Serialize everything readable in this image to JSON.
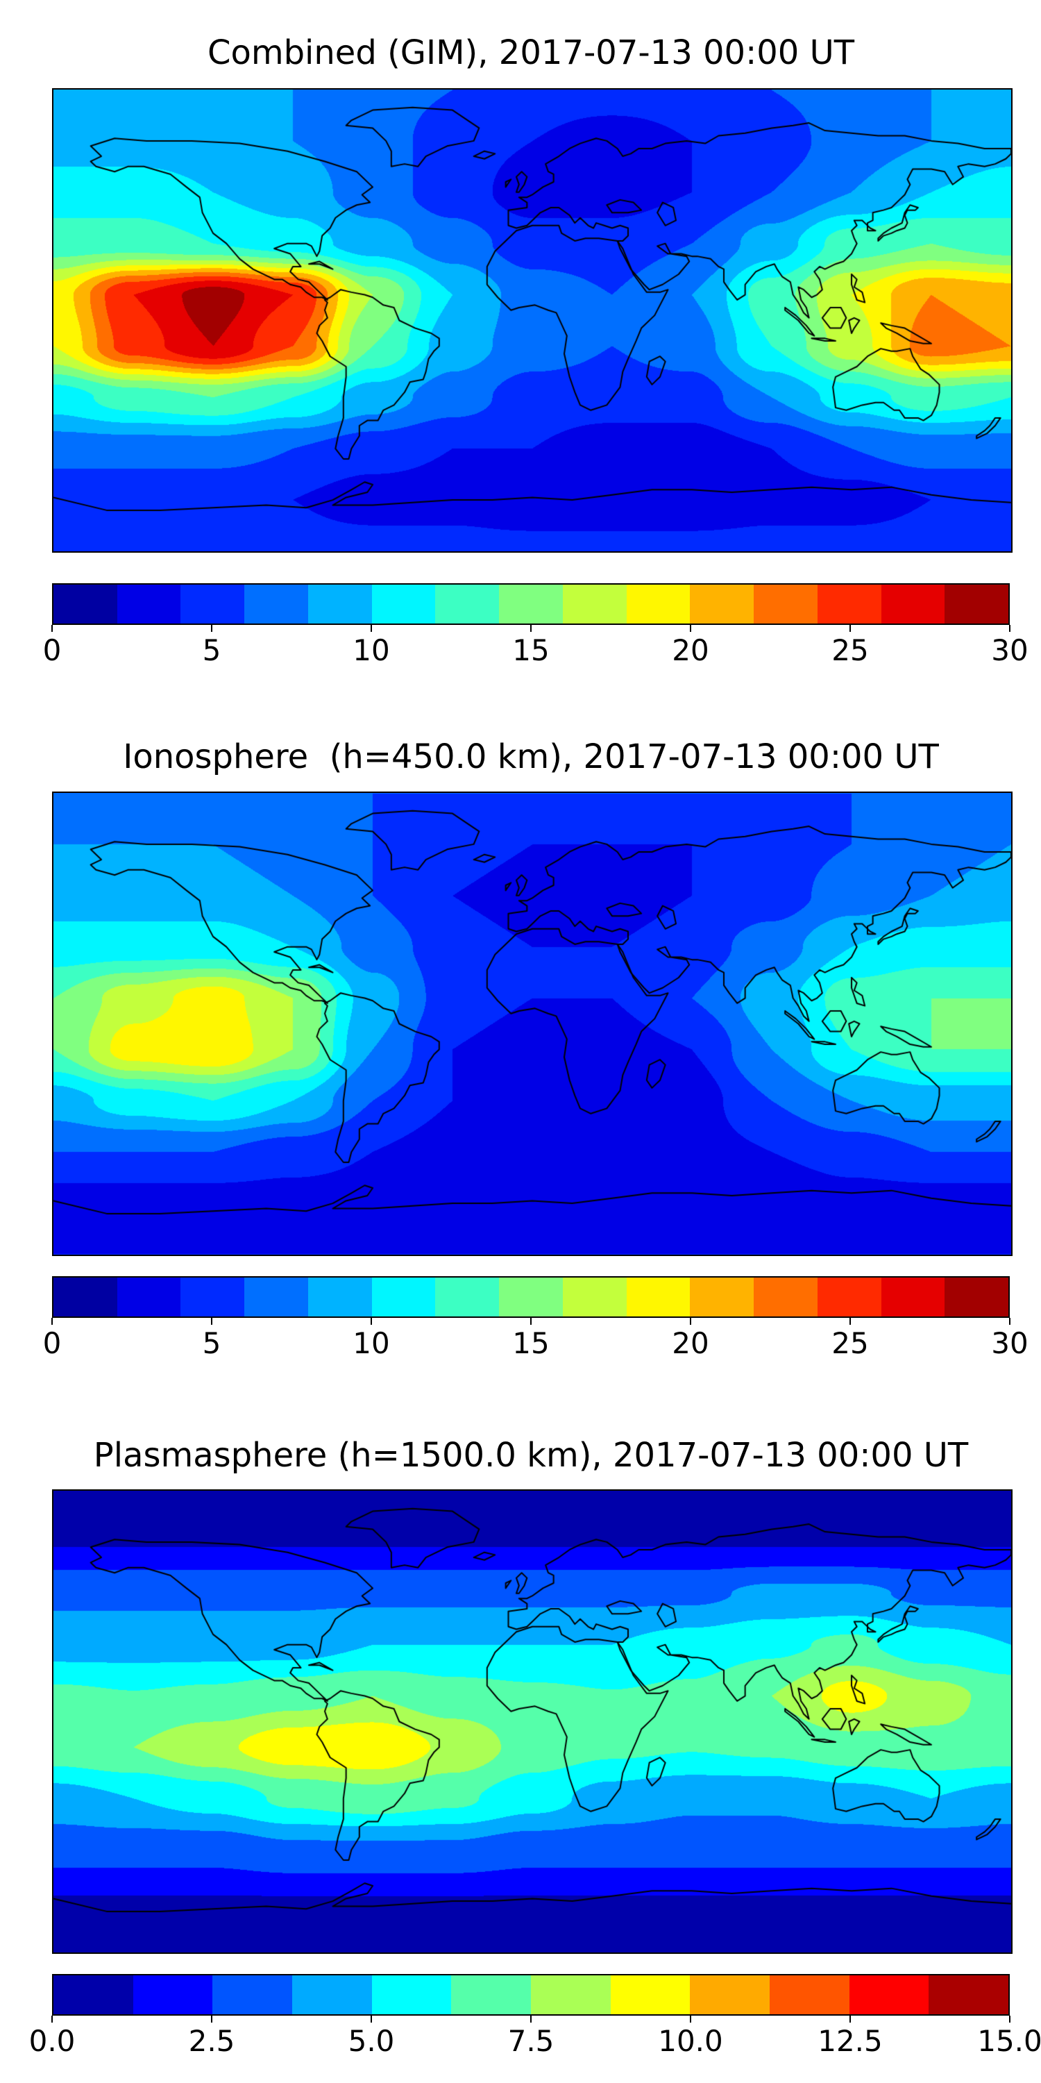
{
  "figure": {
    "background": "#ffffff"
  },
  "panels": [
    {
      "title": "Combined (GIM), 2017-07-13 00:00 UT",
      "colorbar": {
        "vmin": 0,
        "vmax": 30,
        "bands": 15,
        "tick_labels": [
          "0",
          "5",
          "10",
          "15",
          "20",
          "25",
          "30"
        ]
      }
    },
    {
      "title": "Ionosphere  (h=450.0 km), 2017-07-13 00:00 UT",
      "colorbar": {
        "vmin": 0,
        "vmax": 30,
        "bands": 15,
        "tick_labels": [
          "0",
          "5",
          "10",
          "15",
          "20",
          "25",
          "30"
        ]
      }
    },
    {
      "title": "Plasmasphere (h=1500.0 km), 2017-07-13 00:00 UT",
      "colorbar": {
        "vmin": 0,
        "vmax": 15,
        "bands": 12,
        "tick_labels": [
          "0.0",
          "2.5",
          "5.0",
          "7.5",
          "10.0",
          "12.5",
          "15.0"
        ]
      }
    }
  ],
  "chart_data": [
    {
      "type": "heatmap",
      "title": "Combined (GIM), 2017-07-13 00:00 UT",
      "colormap": "jet",
      "projection": "equirectangular",
      "vmin": 0,
      "vmax": 30,
      "contour_step": 2,
      "lons": [
        -180,
        -150,
        -120,
        -90,
        -60,
        -30,
        0,
        30,
        60,
        90,
        120,
        150,
        180
      ],
      "lats": [
        90,
        70,
        50,
        30,
        10,
        -10,
        -30,
        -50,
        -70,
        -90
      ],
      "values": [
        [
          8,
          8,
          8,
          8,
          7,
          6,
          5,
          5,
          5,
          6,
          7,
          8,
          8
        ],
        [
          9,
          9,
          9,
          8,
          7,
          5,
          4,
          3,
          4,
          5,
          7,
          8,
          9
        ],
        [
          11,
          11,
          10,
          9,
          7,
          5,
          3,
          3,
          4,
          6,
          8,
          10,
          11
        ],
        [
          13,
          13,
          12,
          11,
          9,
          7,
          5,
          5,
          6,
          9,
          13,
          14,
          13
        ],
        [
          19,
          26,
          29,
          26,
          16,
          10,
          7,
          6,
          8,
          13,
          18,
          22,
          21
        ],
        [
          18,
          25,
          28,
          24,
          14,
          9,
          7,
          6,
          7,
          12,
          17,
          23,
          22
        ],
        [
          11,
          13,
          14,
          12,
          9,
          7,
          5,
          5,
          5,
          8,
          11,
          13,
          12
        ],
        [
          7,
          7,
          7,
          6,
          5,
          4,
          4,
          3,
          3,
          4,
          6,
          7,
          7
        ],
        [
          4,
          4,
          4,
          4,
          3,
          3,
          2,
          2,
          2,
          3,
          3,
          4,
          4
        ],
        [
          5,
          5,
          5,
          5,
          5,
          5,
          5,
          5,
          5,
          5,
          5,
          5,
          5
        ]
      ]
    },
    {
      "type": "heatmap",
      "title": "Ionosphere  (h=450.0 km), 2017-07-13 00:00 UT",
      "colormap": "jet",
      "projection": "equirectangular",
      "vmin": 0,
      "vmax": 30,
      "contour_step": 2,
      "lons": [
        -180,
        -150,
        -120,
        -90,
        -60,
        -30,
        0,
        30,
        60,
        90,
        120,
        150,
        180
      ],
      "lats": [
        90,
        70,
        50,
        30,
        10,
        -10,
        -30,
        -50,
        -70,
        -90
      ],
      "values": [
        [
          7,
          7,
          7,
          7,
          6,
          6,
          6,
          6,
          6,
          6,
          6,
          7,
          7
        ],
        [
          8,
          8,
          8,
          7,
          6,
          5,
          4,
          4,
          4,
          5,
          6,
          7,
          8
        ],
        [
          9,
          9,
          9,
          8,
          6,
          4,
          3,
          3,
          4,
          5,
          7,
          8,
          9
        ],
        [
          11,
          11,
          11,
          10,
          7,
          5,
          4,
          4,
          5,
          7,
          10,
          11,
          11
        ],
        [
          14,
          17,
          19,
          16,
          9,
          5,
          4,
          4,
          6,
          9,
          13,
          14,
          14
        ],
        [
          14,
          19,
          20,
          16,
          8,
          4,
          3,
          3,
          4,
          8,
          12,
          14,
          14
        ],
        [
          9,
          11,
          12,
          10,
          6,
          4,
          3,
          3,
          3,
          6,
          8,
          9,
          9
        ],
        [
          6,
          6,
          6,
          5,
          4,
          3,
          3,
          2,
          3,
          4,
          5,
          6,
          6
        ],
        [
          3,
          3,
          3,
          3,
          3,
          2,
          2,
          2,
          2,
          2,
          3,
          3,
          3
        ],
        [
          4,
          4,
          4,
          4,
          4,
          4,
          4,
          4,
          4,
          4,
          4,
          4,
          4
        ]
      ]
    },
    {
      "type": "heatmap",
      "title": "Plasmasphere (h=1500.0 km), 2017-07-13 00:00 UT",
      "colormap": "jet",
      "projection": "equirectangular",
      "vmin": 0,
      "vmax": 15,
      "contour_step": 1.25,
      "lons": [
        -180,
        -150,
        -120,
        -90,
        -60,
        -30,
        0,
        30,
        60,
        90,
        120,
        150,
        180
      ],
      "lats": [
        90,
        70,
        50,
        30,
        10,
        -10,
        -30,
        -50,
        -70,
        -90
      ],
      "values": [
        [
          1,
          1,
          1,
          1,
          1,
          1,
          1,
          1,
          1,
          1,
          1,
          1,
          1
        ],
        [
          1.2,
          1.2,
          1.2,
          1.2,
          1.2,
          1.2,
          1.2,
          1.2,
          1.2,
          1.2,
          1.2,
          1.2,
          1.2
        ],
        [
          3.5,
          3.5,
          3.5,
          3.5,
          3.5,
          3.5,
          3.5,
          3.5,
          3.5,
          4,
          4,
          3.5,
          3.5
        ],
        [
          4.5,
          4.5,
          4.5,
          4.5,
          5,
          5,
          5,
          5,
          5.5,
          6,
          6.5,
          5.5,
          5
        ],
        [
          6.5,
          6.3,
          6.5,
          7,
          7.5,
          6.8,
          6.5,
          6.3,
          6.5,
          7.5,
          9.3,
          8,
          7
        ],
        [
          7,
          7.5,
          8.5,
          9.6,
          9.9,
          8.5,
          7,
          6.5,
          6.3,
          6.5,
          7,
          7.2,
          7
        ],
        [
          4.5,
          5,
          5.5,
          6.5,
          7,
          6.5,
          5.5,
          4.5,
          4,
          4,
          4.5,
          5,
          4.5
        ],
        [
          3,
          3,
          3,
          3.5,
          3.5,
          3.5,
          3,
          3,
          3,
          3,
          3,
          3,
          3
        ],
        [
          1.2,
          1.2,
          1.2,
          1.2,
          1.2,
          1.2,
          1.2,
          1.2,
          1.2,
          1.2,
          1.2,
          1.2,
          1.2
        ],
        [
          1,
          1,
          1,
          1,
          1,
          1,
          1,
          1,
          1,
          1,
          1,
          1,
          1
        ]
      ]
    }
  ]
}
